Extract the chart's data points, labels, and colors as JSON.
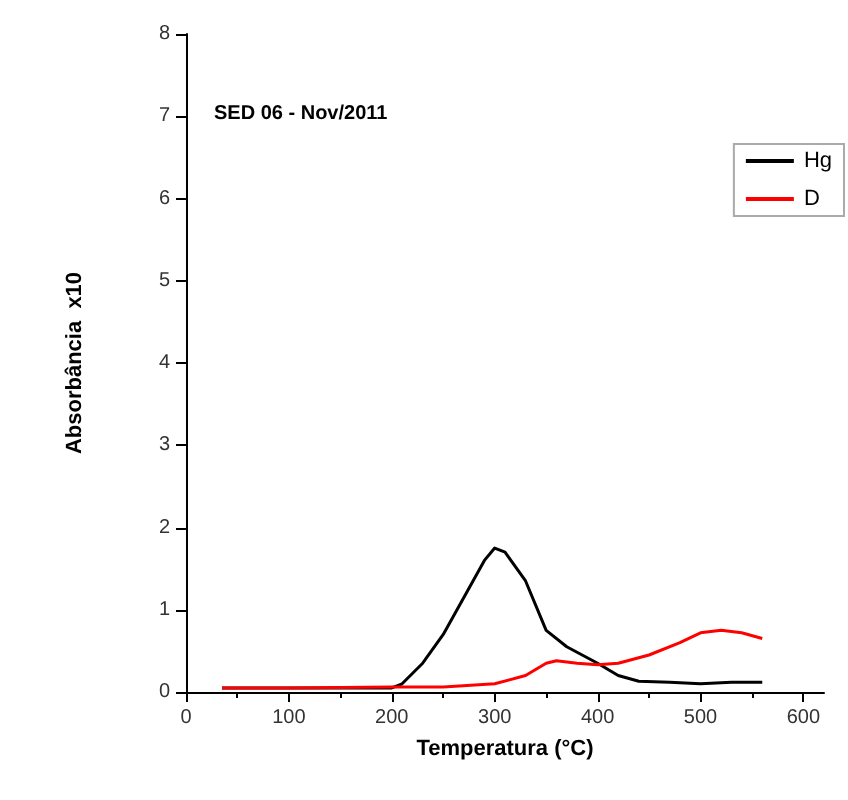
{
  "chart_data": {
    "type": "line",
    "xlabel": "Temperatura (°C)",
    "ylabel": "Absorbância  x10",
    "annotations": [
      "SED 06 - Nov/2011"
    ],
    "xlim": [
      0,
      620
    ],
    "xticks": [
      0,
      100,
      200,
      300,
      400,
      500,
      600
    ],
    "ylim": [
      0,
      8
    ],
    "yticks": [
      0,
      1,
      2,
      3,
      4,
      5,
      6,
      7,
      8
    ],
    "grid": false,
    "legend": "top right",
    "marker": "none",
    "line_style": "solid",
    "series": [
      {
        "name": "Hg",
        "color": "#000000",
        "x": [
          35,
          100,
          150,
          200,
          210,
          230,
          250,
          270,
          290,
          300,
          310,
          330,
          350,
          370,
          400,
          420,
          440,
          470,
          500,
          530,
          560
        ],
        "values": [
          0.05,
          0.05,
          0.05,
          0.05,
          0.1,
          0.35,
          0.7,
          1.15,
          1.6,
          1.75,
          1.7,
          1.35,
          0.75,
          0.55,
          0.35,
          0.2,
          0.13,
          0.12,
          0.1,
          0.12,
          0.12
        ]
      },
      {
        "name": "D",
        "color": "#ff0000",
        "x": [
          35,
          100,
          200,
          250,
          300,
          330,
          350,
          360,
          380,
          400,
          420,
          450,
          480,
          500,
          520,
          540,
          560
        ],
        "values": [
          0.05,
          0.05,
          0.06,
          0.06,
          0.1,
          0.2,
          0.35,
          0.38,
          0.35,
          0.33,
          0.35,
          0.45,
          0.6,
          0.72,
          0.75,
          0.72,
          0.65
        ]
      }
    ]
  }
}
